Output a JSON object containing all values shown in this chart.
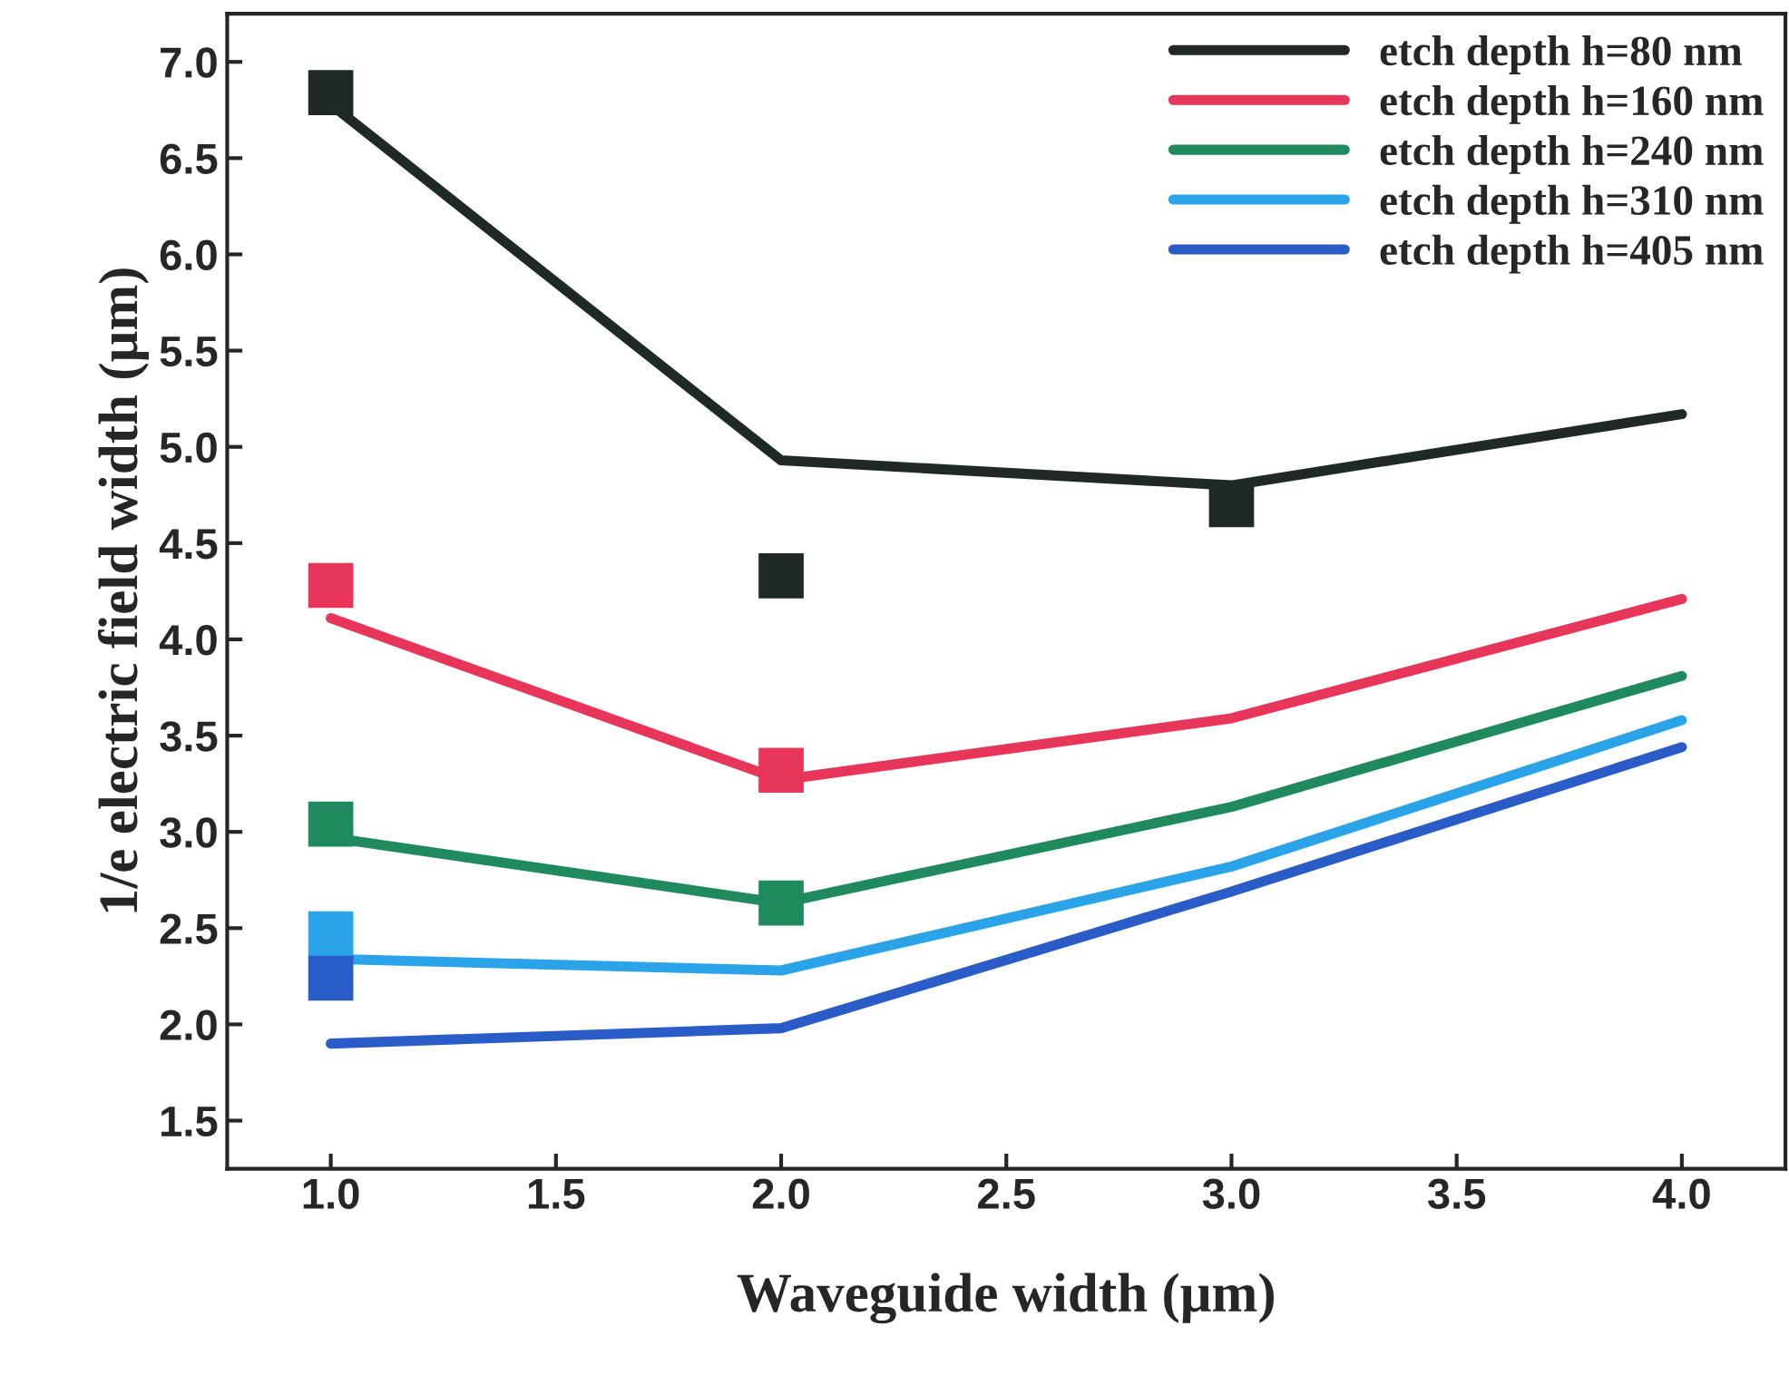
{
  "chart_data": {
    "type": "line",
    "xlabel": "Waveguide width (μm)",
    "ylabel": "1/e electric field width (μm)",
    "xlim": [
      0.77,
      4.23
    ],
    "xticks": [
      {
        "value": 1,
        "label": "1.0"
      },
      {
        "value": 1.5,
        "label": "1.5"
      },
      {
        "value": 2,
        "label": "2.0"
      },
      {
        "value": 2.5,
        "label": "2.5"
      },
      {
        "value": 3,
        "label": "3.0"
      },
      {
        "value": 3.5,
        "label": "3.5"
      },
      {
        "value": 4,
        "label": "4.0"
      }
    ],
    "ylim": [
      1.25,
      7.25
    ],
    "yticks": [
      {
        "value": 1.5,
        "label": "1.5"
      },
      {
        "value": 2,
        "label": "2.0"
      },
      {
        "value": 2.5,
        "label": "2.5"
      },
      {
        "value": 3,
        "label": "3.0"
      },
      {
        "value": 3.5,
        "label": "3.5"
      },
      {
        "value": 4,
        "label": "4.0"
      },
      {
        "value": 4.5,
        "label": "4.5"
      },
      {
        "value": 5,
        "label": "5.0"
      },
      {
        "value": 5.5,
        "label": "5.5"
      },
      {
        "value": 6,
        "label": "6.0"
      },
      {
        "value": 6.5,
        "label": "6.5"
      },
      {
        "value": 7,
        "label": "7.0"
      }
    ],
    "grid": false,
    "legend": "top right",
    "line_style": "solid",
    "series": [
      {
        "name": "etch depth h=80 nm",
        "color": "#1f2a26",
        "x": [
          1,
          2,
          3,
          4
        ],
        "values": [
          6.78,
          4.93,
          4.8,
          5.17
        ]
      },
      {
        "name": "etch depth h=160 nm",
        "color": "#e8355a",
        "x": [
          1,
          2,
          3,
          4
        ],
        "values": [
          4.11,
          3.27,
          3.59,
          4.21
        ]
      },
      {
        "name": "etch depth h=240 nm",
        "color": "#1e8a5e",
        "x": [
          1,
          2,
          3,
          4
        ],
        "values": [
          2.97,
          2.63,
          3.13,
          3.81
        ]
      },
      {
        "name": "etch depth h=310 nm",
        "color": "#2aa3e8",
        "x": [
          1,
          2,
          3,
          4
        ],
        "values": [
          2.34,
          2.28,
          2.82,
          3.58
        ]
      },
      {
        "name": "etch depth h=405 nm",
        "color": "#2a5cc8",
        "x": [
          1,
          2,
          3,
          4
        ],
        "values": [
          1.9,
          1.98,
          2.69,
          3.44
        ]
      },
      {
        "color": "#1f2a26",
        "type": "scatter",
        "marker": "square",
        "x": [
          1,
          2,
          3
        ],
        "values": [
          6.84,
          4.33,
          4.7
        ]
      },
      {
        "color": "#e8355a",
        "type": "scatter",
        "marker": "square",
        "x": [
          1,
          2
        ],
        "values": [
          4.28,
          3.32
        ]
      },
      {
        "color": "#1e8a5e",
        "type": "scatter",
        "marker": "square",
        "x": [
          1,
          2
        ],
        "values": [
          3.04,
          2.63
        ]
      },
      {
        "color": "#2aa3e8",
        "type": "scatter",
        "marker": "square",
        "x": [
          1
        ],
        "values": [
          2.47
        ]
      },
      {
        "color": "#2a5cc8",
        "type": "scatter",
        "marker": "square",
        "x": [
          1
        ],
        "values": [
          2.24
        ]
      }
    ]
  }
}
